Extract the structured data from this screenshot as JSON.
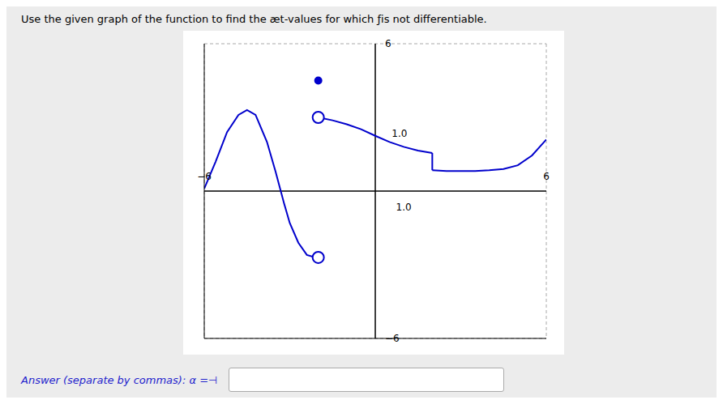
{
  "chart_data": {
    "type": "line",
    "title": "Use the given graph of the function to find the æt-values for which ƒis not differentiable.",
    "subtitle": "Answer (separate by commas): α =⊣",
    "xlim": [
      -6,
      6
    ],
    "ylim": [
      -6,
      6
    ],
    "xticks": [
      -6,
      -4,
      -2,
      0,
      2,
      4,
      6
    ],
    "yticks": [
      -6,
      -4,
      -2,
      0,
      2,
      4,
      6
    ],
    "grid": true,
    "tick_labels": false,
    "series": [
      {
        "type": "line",
        "color": "#0000cc",
        "x": [
          -6,
          -5.6,
          -5.2,
          -4.8,
          -4.5,
          -4.2,
          -3.8,
          -3.5,
          -3.2,
          -3.0,
          -2.7,
          -2.4,
          -2.1,
          -2.0
        ],
        "values": [
          0.1,
          1.2,
          2.4,
          3.1,
          3.3,
          3.1,
          2.0,
          0.8,
          -0.5,
          -1.3,
          -2.1,
          -2.6,
          -2.7,
          -2.7
        ]
      },
      {
        "type": "line",
        "color": "#0000cc",
        "x": [
          -2.0,
          -1.5,
          -1.0,
          -0.5,
          0.0,
          0.5,
          1.0,
          1.5,
          2.0
        ],
        "values": [
          3.0,
          2.88,
          2.72,
          2.52,
          2.25,
          2.0,
          1.8,
          1.65,
          1.55
        ]
      },
      {
        "type": "line",
        "color": "#0000cc",
        "x": [
          2.0,
          2.0
        ],
        "values": [
          1.55,
          0.85
        ]
      },
      {
        "type": "line",
        "color": "#0000cc",
        "x": [
          2.0,
          2.5,
          3.0,
          3.5,
          4.0,
          4.5,
          5.0,
          5.5,
          6.0
        ],
        "values": [
          0.85,
          0.82,
          0.82,
          0.82,
          0.85,
          0.9,
          1.05,
          1.45,
          2.1
        ]
      },
      {
        "type": "scatter",
        "marker": "open",
        "color": "#0000cc",
        "x": [
          -2.0
        ],
        "values": [
          -2.7
        ]
      },
      {
        "type": "scatter",
        "marker": "open",
        "color": "#0000cc",
        "x": [
          -2.0
        ],
        "values": [
          3.0
        ]
      },
      {
        "type": "scatter",
        "marker": "filled",
        "color": "#0000cc",
        "x": [
          -2.0
        ],
        "values": [
          4.5
        ]
      }
    ],
    "annotations": [
      {
        "text": "−6",
        "x": -6.0,
        "y": 0.3
      },
      {
        "text": "6",
        "x": 6.0,
        "y": 0.3
      },
      {
        "text": "6",
        "x": 0.2,
        "y": 6.0
      },
      {
        "text": "−6",
        "x": 0.2,
        "y": -6.0
      },
      {
        "text": "1.0",
        "x": 0.85,
        "y": 2.05
      },
      {
        "text": "1.0",
        "x": 1.0,
        "y": -0.35
      }
    ]
  }
}
